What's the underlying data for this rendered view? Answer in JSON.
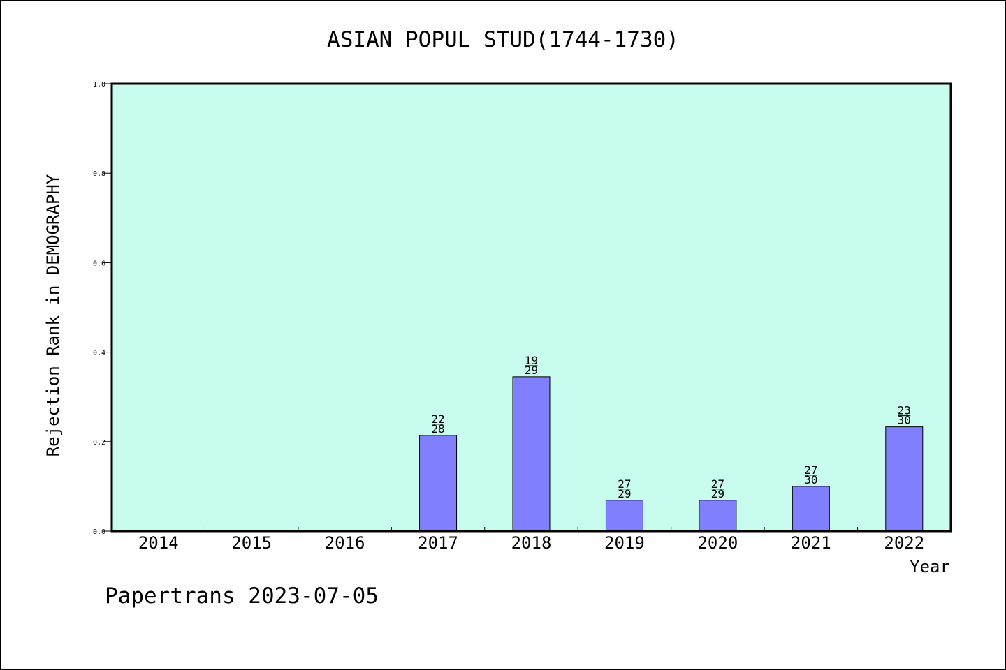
{
  "footer": "Papertrans 2023-07-05",
  "colors": {
    "plot_background": "#c8fcee",
    "bar": "#8080ff",
    "bar_edge": "#000000"
  },
  "chart_data": {
    "type": "bar",
    "title": "ASIAN POPUL STUD(1744-1730)",
    "xlabel": "Year",
    "ylabel": "Rejection Rank in DEMOGRAPHY",
    "ylim": [
      0,
      1.0
    ],
    "yticks": [
      "0.0",
      "0.2",
      "0.4",
      "0.6",
      "0.8",
      "1.0"
    ],
    "categories": [
      "2014",
      "2015",
      "2016",
      "2017",
      "2018",
      "2019",
      "2020",
      "2021",
      "2022"
    ],
    "values": [
      null,
      null,
      null,
      0.214,
      0.345,
      0.069,
      0.069,
      0.1,
      0.233
    ],
    "bar_labels": [
      null,
      null,
      null,
      [
        "22",
        "28"
      ],
      [
        "19",
        "29"
      ],
      [
        "27",
        "29"
      ],
      [
        "27",
        "29"
      ],
      [
        "27",
        "30"
      ],
      [
        "23",
        "30"
      ]
    ],
    "grid": false
  }
}
